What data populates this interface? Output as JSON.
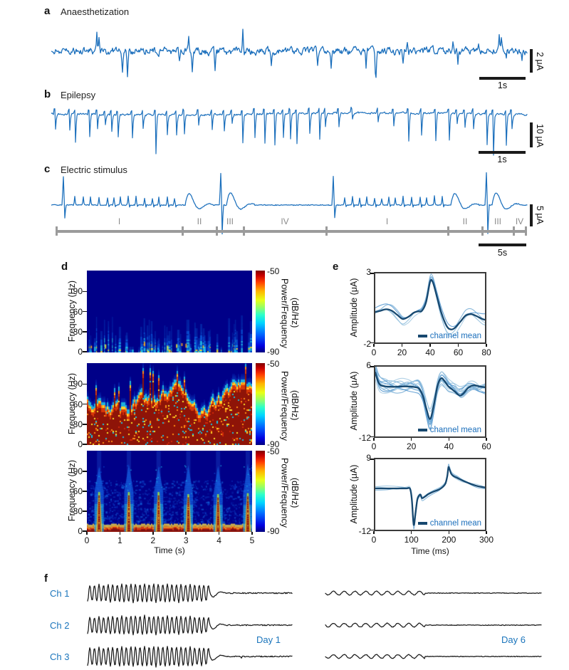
{
  "colors": {
    "trace_blue": "#1b6fbc",
    "mean_navy": "#17486f",
    "light_blues": [
      "#a9cce3",
      "#7bafd6",
      "#92c0de",
      "#5b9bd1"
    ],
    "label_blue": "#1b75bc",
    "gray_bar": "#9b9b9b",
    "gray_text": "#8a8a8a",
    "black": "#1a1a1a",
    "spectro_bg": "#000088"
  },
  "panels": {
    "a": {
      "letter": "a",
      "title": "Anaesthetization",
      "v_scale": "2 μA",
      "h_scale": "1s"
    },
    "b": {
      "letter": "b",
      "title": "Epilepsy",
      "v_scale": "10 μA",
      "h_scale": "1s"
    },
    "c": {
      "letter": "c",
      "title": "Electric stimulus",
      "v_scale": "5 μA",
      "h_scale": "5s",
      "phase_labels": [
        "I",
        "II",
        "III",
        "IV",
        "I",
        "II",
        "III",
        "IV"
      ],
      "phase_bounds": [
        0.01,
        0.276,
        0.349,
        0.406,
        0.579,
        0.836,
        0.909,
        0.975,
        1.0
      ]
    },
    "d": {
      "letter": "d",
      "ylabel": "Frequency (Hz)",
      "yticks": [
        0,
        30,
        60,
        90
      ],
      "ymax_hz": 120,
      "xlabel": "Time (s)",
      "xticks": [
        0,
        1,
        2,
        3,
        4,
        5
      ],
      "colorbar_max": "-50",
      "colorbar_min": "-90",
      "colorbar_label": "Power/Frequency (dB/Hz)"
    },
    "e": {
      "letter": "e",
      "ylabel": "Amplitude (μA)",
      "xlabel": "Time (ms)",
      "legend": "channel mean",
      "plots": [
        {
          "ymax": "3",
          "ymin": "-2",
          "xticks": [
            0,
            20,
            40,
            60,
            80
          ]
        },
        {
          "ymax": "6",
          "ymin": "-12",
          "xticks": [
            0,
            20,
            40,
            60
          ]
        },
        {
          "ymax": "9",
          "ymin": "-12",
          "xticks": [
            0,
            100,
            200,
            300
          ]
        }
      ]
    },
    "f": {
      "letter": "f",
      "channels": [
        "Ch 1",
        "Ch 2",
        "Ch 3"
      ],
      "days": [
        "Day 1",
        "Day 6"
      ]
    }
  },
  "chart_data": [
    {
      "panel": "a",
      "type": "line",
      "title": "Anaesthetization",
      "description": "Continuous noisy local field potential recording with intermittent sharp biphasic spikes",
      "amplitude_scalebar": "2 μA",
      "time_scalebar": "1s"
    },
    {
      "panel": "b",
      "type": "line",
      "title": "Epilepsy",
      "description": "Epileptiform activity: rhythmic sharp downward spikes riding on a noisy baseline",
      "amplitude_scalebar": "10 μA",
      "time_scalebar": "1s"
    },
    {
      "panel": "c",
      "type": "line",
      "title": "Electric stimulus",
      "description": "Stimulus-evoked recording; large artefacts at phase onsets, periodic small pulses during phase I, damped oscillations in phases II and III, quiescence in phase IV",
      "amplitude_scalebar": "5 μA",
      "time_scalebar": "5s",
      "phases": [
        "I",
        "II",
        "III",
        "IV",
        "I",
        "II",
        "III",
        "IV"
      ]
    },
    {
      "panel": "d",
      "type": "heatmap",
      "xlabel": "Time (s)",
      "ylabel": "Frequency (Hz)",
      "colorbar_label": "Power/Frequency (dB/Hz)",
      "x_range_s": [
        0,
        5
      ],
      "y_range_hz": [
        0,
        120
      ],
      "yticks": [
        0,
        30,
        60,
        90
      ],
      "xticks": [
        0,
        1,
        2,
        3,
        4,
        5
      ],
      "color_range_db": [
        -90,
        -50
      ],
      "subplots": [
        {
          "condition": "anaesthetization",
          "description": "sparse low-power vertical streaks below ~55 Hz on dark-blue background"
        },
        {
          "condition": "epilepsy",
          "description": "broadband high power up to ~90 Hz, saturated red below ~60 Hz"
        },
        {
          "condition": "electric stimulus",
          "description": "six periodic high-power bursts reaching ~60 Hz plus a continuous hot band near 0 Hz",
          "burst_times_s": [
            0.37,
            1.27,
            2.17,
            3.07,
            3.97,
            4.87
          ]
        }
      ]
    },
    {
      "panel": "e",
      "type": "line",
      "ylabel": "Amplitude (μA)",
      "xlabel": "Time (ms)",
      "legend": [
        "channel mean"
      ],
      "subplots": [
        {
          "xlim": [
            0,
            80
          ],
          "ylim": [
            -2,
            3
          ],
          "n_traces": 4,
          "spread": 0.45,
          "wiggle": 0.22,
          "x": [
            0,
            4,
            8,
            12,
            16,
            20,
            24,
            28,
            31,
            34,
            37,
            40,
            42,
            45,
            48,
            52,
            55,
            58,
            62,
            66,
            70,
            74,
            78,
            80
          ],
          "y": [
            0.2,
            0.3,
            0.4,
            0.3,
            0.0,
            -0.3,
            -0.15,
            0.15,
            0.25,
            0.3,
            0.9,
            2.4,
            2.35,
            1.3,
            0.2,
            -0.8,
            -1.05,
            -0.95,
            -0.5,
            -0.05,
            0.05,
            -0.1,
            -0.3,
            -0.35
          ]
        },
        {
          "xlim": [
            0,
            60
          ],
          "ylim": [
            -12,
            6
          ],
          "n_traces": 12,
          "spread": 2.2,
          "wiggle": 1.1,
          "x": [
            0,
            1.5,
            3,
            6,
            10,
            14,
            18,
            22,
            24,
            26,
            28,
            30,
            32,
            34,
            36,
            38,
            40,
            43,
            46,
            48,
            51,
            54,
            57,
            60
          ],
          "y": [
            4.5,
            2.2,
            1.2,
            0.9,
            0.8,
            0.9,
            0.9,
            0.7,
            0.3,
            -1.5,
            -5.0,
            -7.5,
            -4.0,
            1.0,
            3.0,
            2.2,
            0.9,
            -0.2,
            -1.4,
            -1.0,
            0.6,
            1.2,
            0.9,
            0.7
          ]
        },
        {
          "xlim": [
            0,
            300
          ],
          "ylim": [
            -12,
            9
          ],
          "n_traces": 3,
          "spread": 0.8,
          "wiggle": 0.4,
          "x": [
            0,
            30,
            60,
            85,
            95,
            100,
            105,
            110,
            115,
            120,
            124,
            128,
            135,
            145,
            160,
            175,
            185,
            192,
            197,
            200,
            203,
            208,
            215,
            225,
            240,
            260,
            280,
            300
          ],
          "y": [
            0.3,
            0.3,
            0.3,
            0.3,
            0.2,
            -3.0,
            -10.5,
            -7.0,
            -3.0,
            -1.8,
            -1.6,
            -2.6,
            -2.2,
            -1.4,
            -0.6,
            0.0,
            0.8,
            1.8,
            4.0,
            6.6,
            6.0,
            4.6,
            3.9,
            3.4,
            2.6,
            1.7,
            1.0,
            0.6
          ]
        }
      ]
    },
    {
      "panel": "f",
      "type": "line",
      "channels": [
        "Ch 1",
        "Ch 2",
        "Ch 3"
      ],
      "days": [
        "Day 1",
        "Day 6"
      ],
      "description": "Day 1: large rhythmic oscillations on all three channels that flatten out; Day 6: strongly attenuated small ripples that flatten out"
    }
  ]
}
